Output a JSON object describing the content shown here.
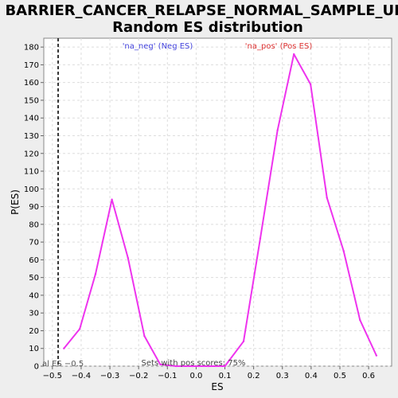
{
  "chart_data": {
    "type": "line",
    "title_line1": "BARRIER_CANCER_RELAPSE_NORMAL_SAMPLE_UP:",
    "title_line2": "Random ES distribution",
    "xlabel": "ES",
    "ylabel": "P(ES)",
    "xlim": [
      -0.53,
      0.68
    ],
    "ylim": [
      0,
      185
    ],
    "xticks": [
      -0.5,
      -0.4,
      -0.3,
      -0.2,
      -0.1,
      0.0,
      0.1,
      0.2,
      0.3,
      0.4,
      0.5,
      0.6
    ],
    "xtick_labels": [
      "−0.5",
      "−0.4",
      "−0.3",
      "−0.2",
      "−0.1",
      "0.0",
      "0.1",
      "0.2",
      "0.3",
      "0.4",
      "0.5",
      "0.6"
    ],
    "yticks": [
      0,
      10,
      20,
      30,
      40,
      50,
      60,
      70,
      80,
      90,
      100,
      110,
      120,
      130,
      140,
      150,
      160,
      170,
      180
    ],
    "grid": true,
    "series": [
      {
        "color": "#ee33ee",
        "x": [
          -0.46,
          -0.405,
          -0.35,
          -0.293,
          -0.237,
          -0.18,
          -0.125,
          -0.07,
          -0.013,
          0.043,
          0.1,
          0.165,
          0.223,
          0.283,
          0.34,
          0.398,
          0.455,
          0.513,
          0.57,
          0.627
        ],
        "y": [
          10,
          21,
          52,
          94,
          61,
          17,
          1,
          0,
          0,
          0,
          0,
          14,
          72,
          133,
          176,
          159,
          95,
          65,
          26,
          6
        ]
      }
    ],
    "actual_es": -0.48,
    "actual_es_label": "al ES −0.5",
    "neg_label": "'na_neg' (Neg ES)",
    "neg_color": "#4444dd",
    "pos_label": "'na_pos' (Pos ES)",
    "pos_color": "#dd3333",
    "footer": "Sets with pos scores: 75%"
  }
}
